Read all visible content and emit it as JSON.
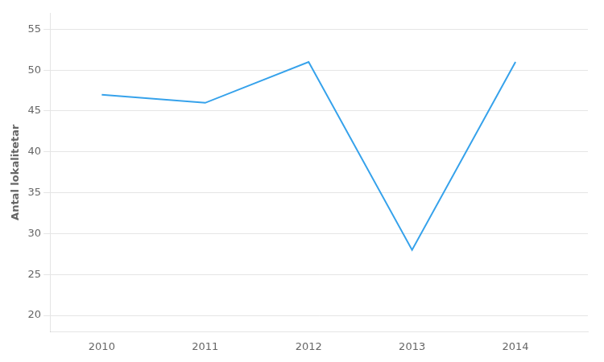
{
  "chart_data": {
    "type": "line",
    "x": [
      2010,
      2011,
      2012,
      2013,
      2014
    ],
    "values": [
      47,
      46,
      51,
      28,
      51
    ],
    "ylabel": "Antal lokalitetar",
    "xlim": [
      2009.5,
      2014.7
    ],
    "xticks": [
      2010,
      2011,
      2012,
      2013,
      2014
    ],
    "ylim": [
      18,
      57
    ],
    "yticks": [
      20,
      25,
      30,
      35,
      40,
      45,
      50,
      55
    ],
    "grid": "y"
  }
}
